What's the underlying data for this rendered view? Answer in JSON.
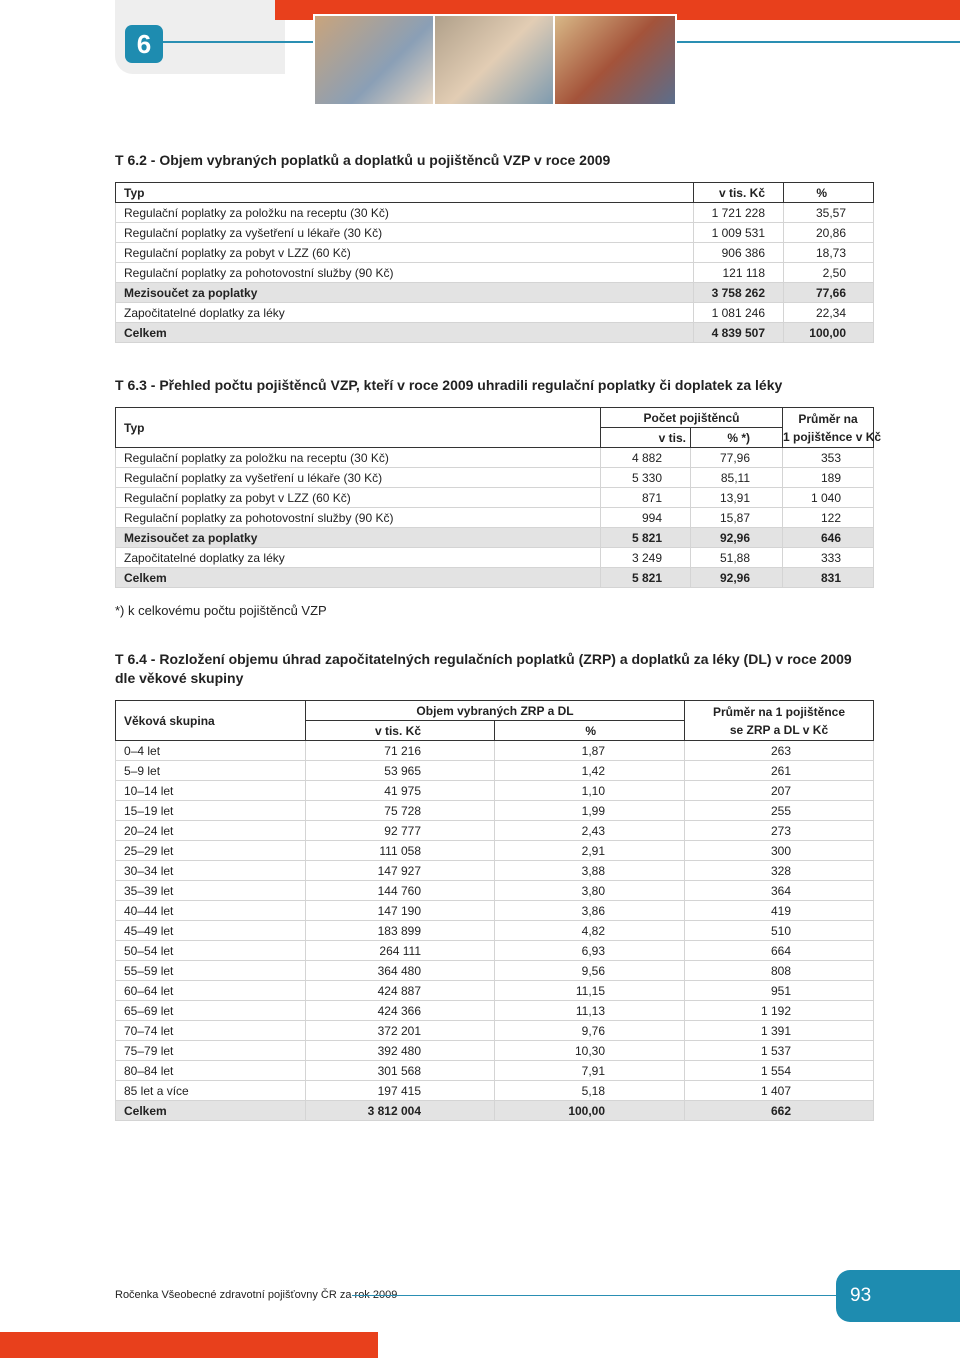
{
  "header": {
    "chapter": "6"
  },
  "t62": {
    "title": "T 6.2 - Objem vybraných poplatků a doplatků u pojištěnců VZP v roce 2009",
    "head": [
      "Typ",
      "v tis. Kč",
      "%"
    ],
    "rows": [
      {
        "cells": [
          "Regulační poplatky za položku na receptu (30 Kč)",
          "1 721 228",
          "35,57"
        ]
      },
      {
        "cells": [
          "Regulační poplatky za vyšetření u lékaře (30 Kč)",
          "1 009 531",
          "20,86"
        ]
      },
      {
        "cells": [
          "Regulační poplatky za pobyt v LZZ (60 Kč)",
          "906 386",
          "18,73"
        ]
      },
      {
        "cells": [
          "Regulační poplatky za pohotovostní služby (90 Kč)",
          "121 118",
          "2,50"
        ]
      },
      {
        "cells": [
          "Mezisoučet za poplatky",
          "3 758 262",
          "77,66"
        ],
        "bold": true
      },
      {
        "cells": [
          "Započitatelné doplatky za léky",
          "1 081 246",
          "22,34"
        ]
      },
      {
        "cells": [
          "Celkem",
          "4 839 507",
          "100,00"
        ],
        "bold": true
      }
    ]
  },
  "t63": {
    "title": "T 6.3 - Přehled počtu pojištěnců VZP, kteří v roce 2009 uhradili regulační poplatky či doplatek za léky",
    "head": [
      "Typ",
      "Počet pojištěnců",
      "v tis.",
      "% *)"
    ],
    "avg_head": [
      "Průměr na",
      "1 pojištěnce v Kč"
    ],
    "rows": [
      {
        "cells": [
          "Regulační poplatky za položku na receptu (30 Kč)",
          "4 882",
          "77,96",
          "353"
        ]
      },
      {
        "cells": [
          "Regulační poplatky za vyšetření u lékaře (30 Kč)",
          "5 330",
          "85,11",
          "189"
        ]
      },
      {
        "cells": [
          "Regulační poplatky za pobyt v LZZ (60 Kč)",
          "871",
          "13,91",
          "1 040"
        ]
      },
      {
        "cells": [
          "Regulační poplatky za pohotovostní služby (90 Kč)",
          "994",
          "15,87",
          "122"
        ]
      },
      {
        "cells": [
          "Mezisoučet za poplatky",
          "5 821",
          "92,96",
          "646"
        ],
        "bold": true
      },
      {
        "cells": [
          "Započitatelné doplatky za léky",
          "3 249",
          "51,88",
          "333"
        ]
      },
      {
        "cells": [
          "Celkem",
          "5 821",
          "92,96",
          "831"
        ],
        "bold": true
      }
    ],
    "note": "*) k celkovému počtu pojištěnců VZP"
  },
  "t64": {
    "title_lines": [
      "T 6.4 - Rozložení objemu úhrad započitatelných regulačních poplatků (ZRP) a doplatků za léky (DL) v roce 2009",
      "dle věkové skupiny"
    ],
    "head": [
      "Věková skupina",
      "Objem vybraných ZRP a DL",
      "v tis. Kč",
      "%"
    ],
    "avg_head": [
      "Průměr na 1 pojištěnce",
      "se ZRP a DL v Kč"
    ],
    "rows": [
      {
        "cells": [
          "0–4 let",
          "71 216",
          "1,87",
          "263"
        ]
      },
      {
        "cells": [
          "5–9 let",
          "53 965",
          "1,42",
          "261"
        ]
      },
      {
        "cells": [
          "10–14 let",
          "41 975",
          "1,10",
          "207"
        ]
      },
      {
        "cells": [
          "15–19 let",
          "75 728",
          "1,99",
          "255"
        ]
      },
      {
        "cells": [
          "20–24 let",
          "92 777",
          "2,43",
          "273"
        ]
      },
      {
        "cells": [
          "25–29 let",
          "111 058",
          "2,91",
          "300"
        ]
      },
      {
        "cells": [
          "30–34 let",
          "147 927",
          "3,88",
          "328"
        ]
      },
      {
        "cells": [
          "35–39 let",
          "144 760",
          "3,80",
          "364"
        ]
      },
      {
        "cells": [
          "40–44 let",
          "147 190",
          "3,86",
          "419"
        ]
      },
      {
        "cells": [
          "45–49 let",
          "183 899",
          "4,82",
          "510"
        ]
      },
      {
        "cells": [
          "50–54 let",
          "264 111",
          "6,93",
          "664"
        ]
      },
      {
        "cells": [
          "55–59 let",
          "364 480",
          "9,56",
          "808"
        ]
      },
      {
        "cells": [
          "60–64 let",
          "424 887",
          "11,15",
          "951"
        ]
      },
      {
        "cells": [
          "65–69 let",
          "424 366",
          "11,13",
          "1 192"
        ]
      },
      {
        "cells": [
          "70–74 let",
          "372 201",
          "9,76",
          "1 391"
        ]
      },
      {
        "cells": [
          "75–79 let",
          "392 480",
          "10,30",
          "1 537"
        ]
      },
      {
        "cells": [
          "80–84 let",
          "301 568",
          "7,91",
          "1 554"
        ]
      },
      {
        "cells": [
          "85 let a více",
          "197 415",
          "5,18",
          "1 407"
        ]
      },
      {
        "cells": [
          "Celkem",
          "3 812 004",
          "100,00",
          "662"
        ],
        "bold": true
      }
    ]
  },
  "footer": {
    "text": "Ročenka Všeobecné zdravotní pojišťovny ČR za rok 2009",
    "page": "93"
  }
}
